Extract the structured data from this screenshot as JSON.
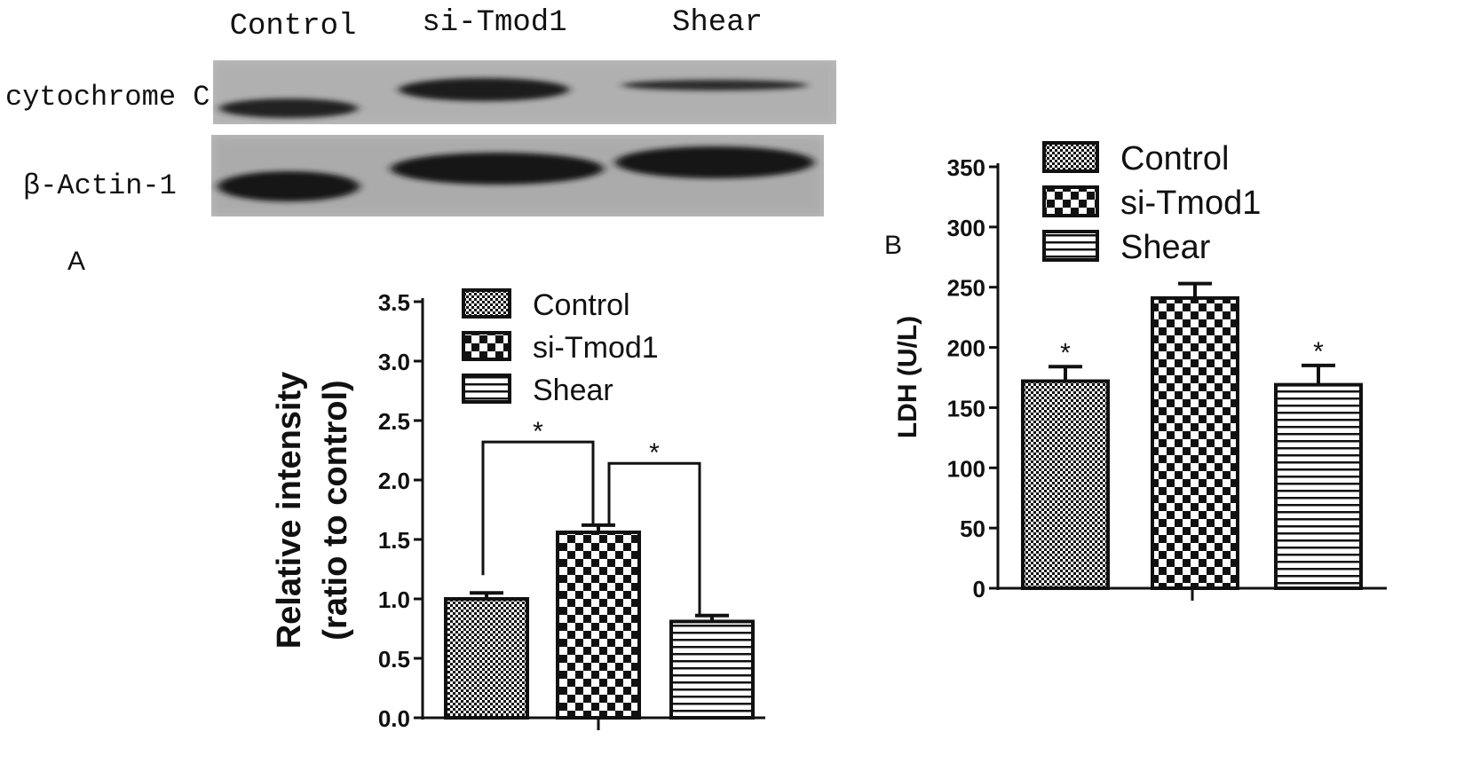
{
  "blot": {
    "lane_labels": [
      "Control",
      "si-Tmod1",
      "Shear"
    ],
    "row_labels": [
      "cytochrome C",
      "β-Actin-1"
    ]
  },
  "panel_labels": {
    "a": "A",
    "b": "B"
  },
  "chart_data": [
    {
      "type": "bar",
      "categories": [
        "Control",
        "si-Tmod1",
        "Shear"
      ],
      "values": [
        1.0,
        1.56,
        0.81
      ],
      "errors": [
        0.05,
        0.06,
        0.05
      ],
      "title": "",
      "xlabel": "",
      "ylabel_line1": "Relative intensity",
      "ylabel_line2": "(ratio to control)",
      "ylim": [
        0,
        3.5
      ],
      "yticks": [
        0.0,
        0.5,
        1.0,
        1.5,
        2.0,
        2.5,
        3.0,
        3.5
      ],
      "tick_labels": [
        "0.0",
        "0.5",
        "1.0",
        "1.5",
        "2.0",
        "2.5",
        "3.0",
        "3.5"
      ],
      "legend": [
        "Control",
        "si-Tmod1",
        "Shear"
      ],
      "legend_position": "top",
      "significance": [
        {
          "from": 0,
          "to": 1,
          "label": "*",
          "bracket_y": 2.32
        },
        {
          "from": 1,
          "to": 2,
          "label": "*",
          "bracket_y": 2.14
        }
      ]
    },
    {
      "type": "bar",
      "categories": [
        "Control",
        "si-Tmod1",
        "Shear"
      ],
      "values": [
        172,
        241,
        169
      ],
      "errors": [
        12,
        12,
        16
      ],
      "title": "",
      "xlabel": "",
      "ylabel": "LDH (U/L)",
      "ylim": [
        0,
        350
      ],
      "yticks": [
        0,
        50,
        100,
        150,
        200,
        250,
        300,
        350
      ],
      "tick_labels": [
        "0",
        "50",
        "100",
        "150",
        "200",
        "250",
        "300",
        "350"
      ],
      "legend": [
        "Control",
        "si-Tmod1",
        "Shear"
      ],
      "legend_position": "top",
      "star_labels": [
        "*",
        "",
        "*"
      ]
    }
  ]
}
